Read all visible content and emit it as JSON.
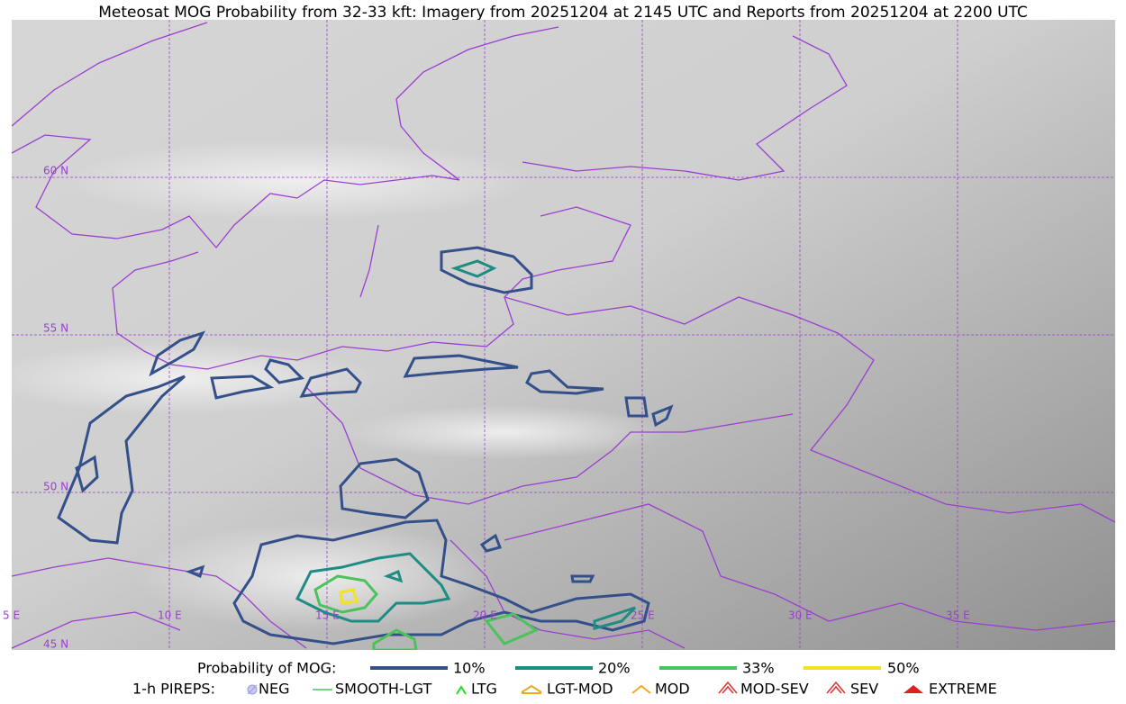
{
  "title": "Meteosat MOG Probability from 32-33 kft: Imagery from 20251204 at 2145 UTC and Reports from 20251204 at 2200 UTC",
  "map": {
    "lat_labels": [
      "60 N",
      "55 N",
      "50 N",
      "45 N"
    ],
    "lon_labels": [
      "5 E",
      "10 E",
      "15 E",
      "20 E",
      "25 E",
      "30 E",
      "35 E"
    ]
  },
  "legend": {
    "probability": {
      "label": "Probability of MOG:",
      "items": [
        "10%",
        "20%",
        "33%",
        "50%"
      ]
    },
    "pireps": {
      "label": "1-h PIREPS:",
      "items": [
        "NEG",
        "SMOOTH-LGT",
        "LTG",
        "LGT-MOD",
        "MOD",
        "MOD-SEV",
        "SEV",
        "EXTREME"
      ]
    }
  }
}
